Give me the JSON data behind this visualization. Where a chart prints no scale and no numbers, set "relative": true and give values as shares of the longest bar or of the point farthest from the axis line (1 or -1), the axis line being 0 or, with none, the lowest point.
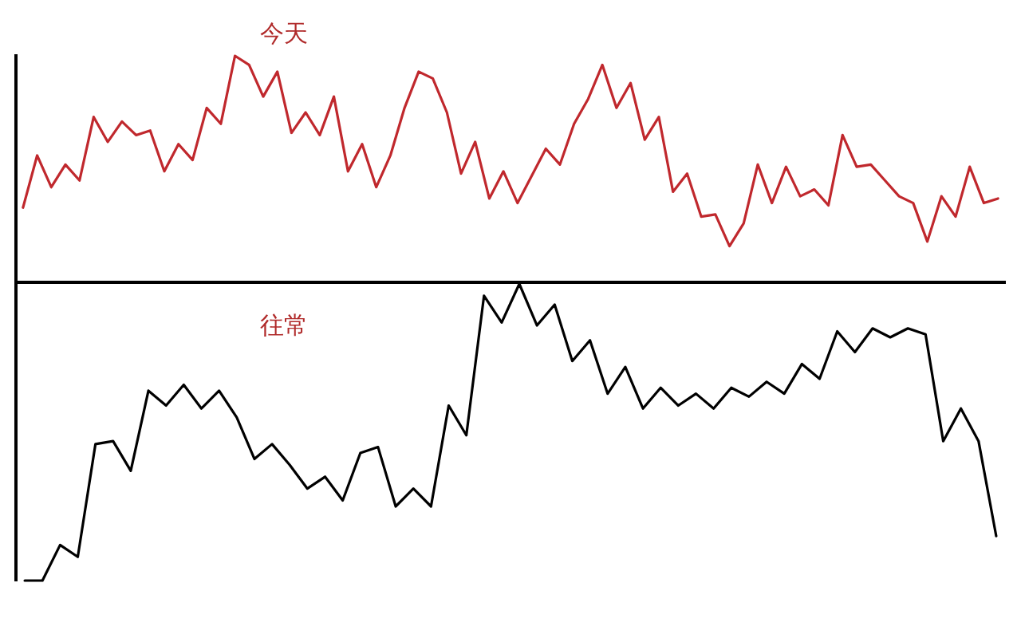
{
  "chart_data": [
    {
      "type": "line",
      "title": "今天",
      "relative": true,
      "grid": false,
      "legend": false,
      "tick_labels": false,
      "marker": "none",
      "line_style": "solid",
      "categories": [
        null,
        null,
        null,
        null,
        null,
        null,
        null,
        null,
        null,
        null,
        null,
        null,
        null,
        null,
        null,
        null,
        null,
        null,
        null,
        null,
        null,
        null,
        null,
        null,
        null,
        null,
        null,
        null,
        null,
        null,
        null,
        null,
        null,
        null,
        null,
        null,
        null,
        null,
        null,
        null,
        null,
        null,
        null,
        null,
        null,
        null,
        null,
        null,
        null,
        null,
        null,
        null,
        null,
        null,
        null,
        null,
        null,
        null,
        null,
        null,
        null,
        null,
        null,
        null,
        null,
        null,
        null,
        null,
        null,
        null
      ],
      "series": [
        {
          "color": "#c0282d",
          "values": [
            0.33,
            0.56,
            0.42,
            0.52,
            0.45,
            0.73,
            0.62,
            0.71,
            0.65,
            0.67,
            0.49,
            0.61,
            0.54,
            0.77,
            0.7,
            1.0,
            0.96,
            0.82,
            0.93,
            0.66,
            0.75,
            0.65,
            0.82,
            0.49,
            0.61,
            0.42,
            0.56,
            0.77,
            0.93,
            0.9,
            0.75,
            0.48,
            0.62,
            0.37,
            0.49,
            0.35,
            0.47,
            0.59,
            0.52,
            0.7,
            0.81,
            0.96,
            0.77,
            0.88,
            0.63,
            0.73,
            0.4,
            0.48,
            0.29,
            0.3,
            0.16,
            0.26,
            0.52,
            0.35,
            0.51,
            0.38,
            0.41,
            0.34,
            0.65,
            0.51,
            0.52,
            0.45,
            0.38,
            0.35,
            0.18,
            0.38,
            0.29,
            0.51,
            0.35,
            0.37
          ]
        }
      ]
    },
    {
      "type": "line",
      "title": "往常",
      "relative": true,
      "grid": false,
      "legend": false,
      "tick_labels": false,
      "marker": "none",
      "line_style": "solid",
      "categories": [
        null,
        null,
        null,
        null,
        null,
        null,
        null,
        null,
        null,
        null,
        null,
        null,
        null,
        null,
        null,
        null,
        null,
        null,
        null,
        null,
        null,
        null,
        null,
        null,
        null,
        null,
        null,
        null,
        null,
        null,
        null,
        null,
        null,
        null,
        null,
        null,
        null,
        null,
        null,
        null,
        null,
        null,
        null,
        null,
        null,
        null,
        null,
        null,
        null,
        null,
        null,
        null,
        null,
        null,
        null,
        null
      ],
      "series": [
        {
          "color": "#000000",
          "values": [
            0,
            0,
            0.12,
            0.08,
            0.46,
            0.47,
            0.37,
            0.64,
            0.59,
            0.66,
            0.58,
            0.64,
            0.55,
            0.41,
            0.46,
            0.39,
            0.31,
            0.35,
            0.27,
            0.43,
            0.45,
            0.25,
            0.31,
            0.25,
            0.59,
            0.49,
            0.96,
            0.87,
            1,
            0.86,
            0.93,
            0.74,
            0.81,
            0.63,
            0.72,
            0.58,
            0.65,
            0.59,
            0.63,
            0.58,
            0.65,
            0.62,
            0.67,
            0.63,
            0.73,
            0.68,
            0.84,
            0.77,
            0.85,
            0.82,
            0.85,
            0.83,
            0.47,
            0.58,
            0.47,
            0.15
          ]
        }
      ]
    }
  ]
}
